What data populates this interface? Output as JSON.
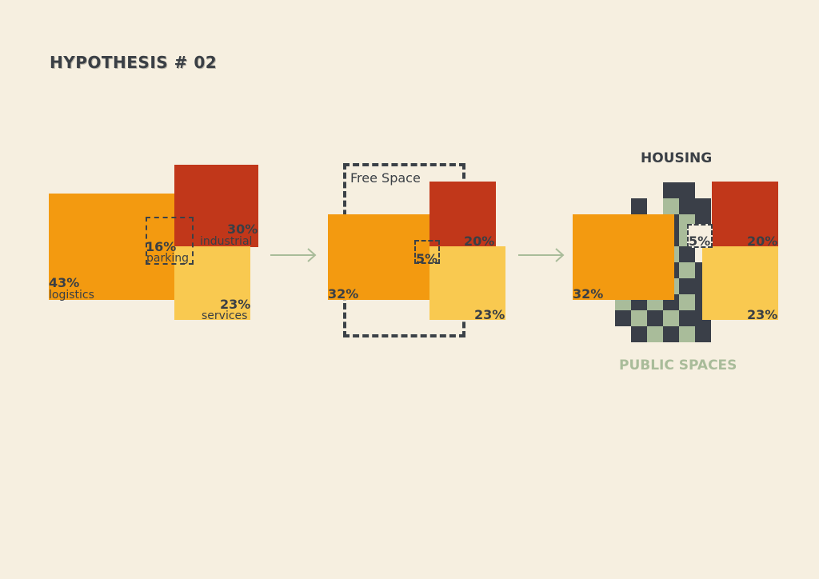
{
  "title": "HYPOTHESIS # 02",
  "colors": {
    "background": "#f6efe0",
    "logistics": "#f39a10",
    "industrial": "#c1371a",
    "services": "#f9c950",
    "housing_dark": "#3a3f48",
    "public_green": "#a9bc9a",
    "arrow": "#a9bc9a"
  },
  "stage1": {
    "logistics": {
      "pct": "43%",
      "label": "logistics"
    },
    "parking": {
      "pct": "16%",
      "label": "parking"
    },
    "industrial": {
      "pct": "30%",
      "label": "industrial"
    },
    "services": {
      "pct": "23%",
      "label": "services"
    }
  },
  "stage2": {
    "free_space": "Free Space",
    "logistics_pct": "32%",
    "parking_pct": "5%",
    "industrial_pct": "20%",
    "services_pct": "23%"
  },
  "stage3": {
    "housing": "HOUSING",
    "public_spaces": "PUBLIC SPACES",
    "logistics_pct": "32%",
    "parking_pct": "5%",
    "industrial_pct": "20%",
    "services_pct": "23%"
  },
  "arrows": [
    "arrow-right-icon",
    "arrow-right-icon"
  ]
}
